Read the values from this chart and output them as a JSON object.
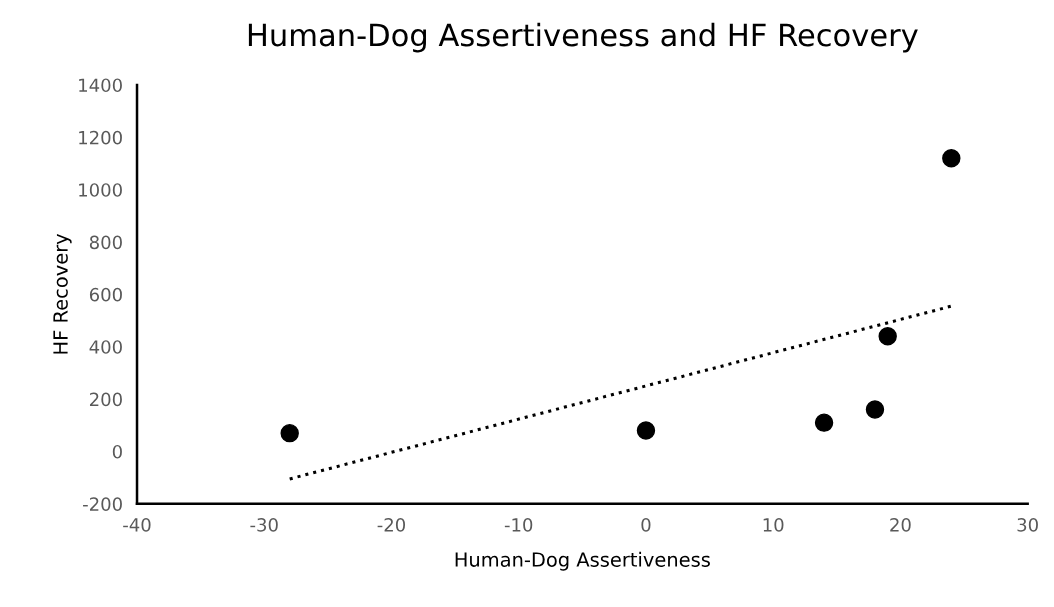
{
  "chart_data": {
    "type": "scatter",
    "title": "Human-Dog Assertiveness and HF Recovery",
    "xlabel": "Human-Dog Assertiveness",
    "ylabel": "HF Recovery",
    "xlim": [
      -40,
      30
    ],
    "xticks": [
      -40,
      -30,
      -20,
      -10,
      0,
      10,
      20,
      30
    ],
    "ylim": [
      -200,
      1400
    ],
    "yticks": [
      -200,
      0,
      200,
      400,
      600,
      800,
      1000,
      1200,
      1400
    ],
    "grid": false,
    "legend": false,
    "series": [
      {
        "color": "#000000",
        "marker": "circle",
        "x": [
          -28,
          0,
          14,
          18,
          19,
          24
        ],
        "values": [
          70,
          80,
          110,
          160,
          440,
          1120
        ]
      },
      {
        "type": "line",
        "color": "#000000",
        "line_style": "dotted",
        "marker": "none",
        "x": [
          -28,
          24
        ],
        "values": [
          -105,
          555
        ]
      }
    ]
  }
}
